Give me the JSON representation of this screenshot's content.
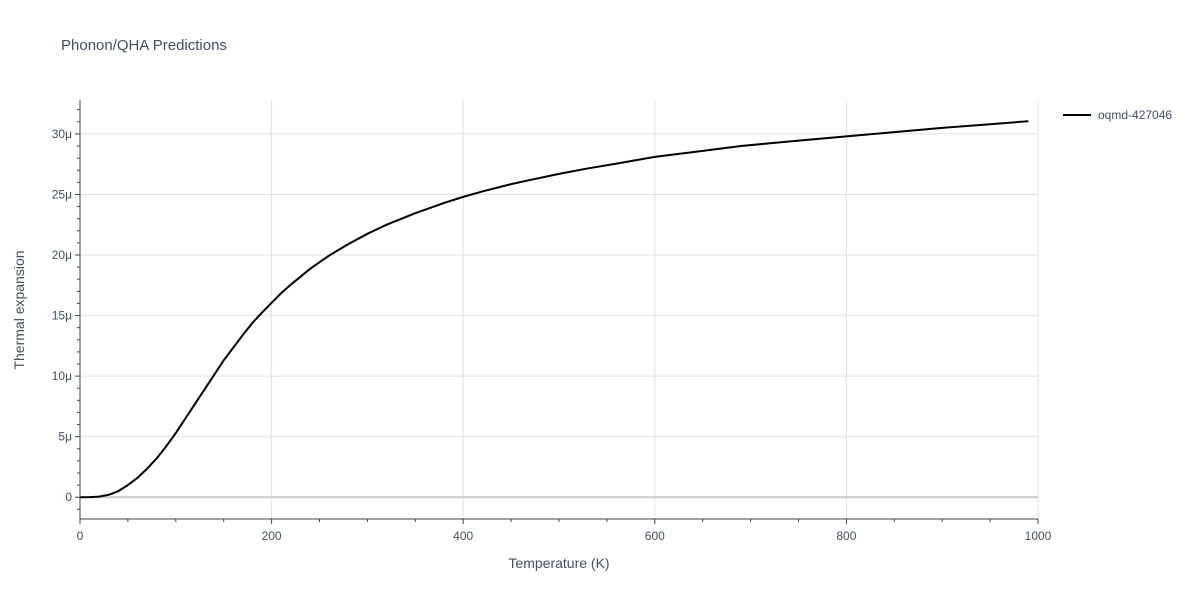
{
  "chart_data": {
    "type": "line",
    "title": "Phonon/QHA Predictions",
    "xlabel": "Temperature (K)",
    "ylabel": "Thermal expansion",
    "xlim": [
      0,
      1000
    ],
    "ylim": [
      -1.8e-06,
      3.28e-05
    ],
    "x_ticks": [
      0,
      200,
      400,
      600,
      800,
      1000
    ],
    "x_tick_labels": [
      "0",
      "200",
      "400",
      "600",
      "800",
      "1000"
    ],
    "y_ticks": [
      0,
      5e-06,
      1e-05,
      1.5e-05,
      2e-05,
      2.5e-05,
      3e-05
    ],
    "y_tick_labels": [
      "0",
      "5μ",
      "10μ",
      "15μ",
      "20μ",
      "25μ",
      "30μ"
    ],
    "grid": true,
    "legend_position": "top-right",
    "series": [
      {
        "name": "oqmd-427046",
        "color": "#000000",
        "x": [
          0,
          10,
          20,
          30,
          40,
          50,
          60,
          70,
          80,
          90,
          100,
          110,
          120,
          130,
          140,
          150,
          160,
          170,
          180,
          190,
          200,
          210,
          220,
          240,
          260,
          280,
          300,
          320,
          350,
          380,
          400,
          420,
          450,
          470,
          500,
          530,
          560,
          600,
          650,
          690,
          750,
          800,
          850,
          900,
          950,
          990
        ],
        "y": [
          0,
          1e-08,
          5e-08,
          2e-07,
          5e-07,
          1e-06,
          1.6e-06,
          2.35e-06,
          3.2e-06,
          4.2e-06,
          5.3e-06,
          6.5e-06,
          7.7e-06,
          8.9e-06,
          1.01e-05,
          1.13e-05,
          1.235e-05,
          1.34e-05,
          1.44e-05,
          1.525e-05,
          1.605e-05,
          1.685e-05,
          1.755e-05,
          1.885e-05,
          1.995e-05,
          2.09e-05,
          2.175e-05,
          2.25e-05,
          2.345e-05,
          2.43e-05,
          2.48e-05,
          2.525e-05,
          2.585e-05,
          2.62e-05,
          2.67e-05,
          2.715e-05,
          2.755e-05,
          2.81e-05,
          2.86e-05,
          2.9e-05,
          2.945e-05,
          2.98e-05,
          3.015e-05,
          3.05e-05,
          3.08e-05,
          3.105e-05
        ]
      }
    ]
  }
}
